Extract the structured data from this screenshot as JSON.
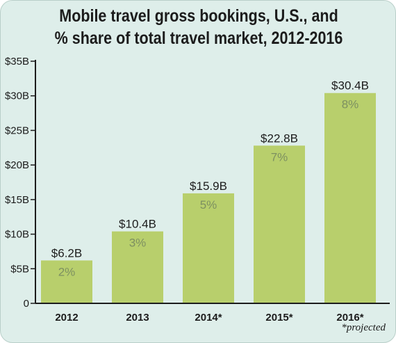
{
  "chart_data": {
    "type": "bar",
    "title_lines": [
      "Mobile travel gross bookings, U.S., and",
      "% share of total travel market, 2012-2016"
    ],
    "categories": [
      "2012",
      "2013",
      "2014*",
      "2015*",
      "2016*"
    ],
    "values": [
      6.2,
      10.4,
      15.9,
      22.8,
      30.4
    ],
    "value_labels": [
      "$6.2B",
      "$10.4B",
      "$15.9B",
      "$22.8B",
      "$30.4B"
    ],
    "share_labels": [
      "2%",
      "3%",
      "5%",
      "7%",
      "8%"
    ],
    "yticks": [
      "0",
      "$5B",
      "$10B",
      "$15B",
      "$20B",
      "$25B",
      "$30B",
      "$35B"
    ],
    "ylim": [
      0,
      35
    ],
    "grid": false,
    "legend": "none",
    "footnote": "*projected",
    "colors": {
      "bar": "#b8cf6c",
      "background": "#deeeea",
      "share_text": "#7d9061",
      "axis": "#1c1c1c"
    }
  }
}
